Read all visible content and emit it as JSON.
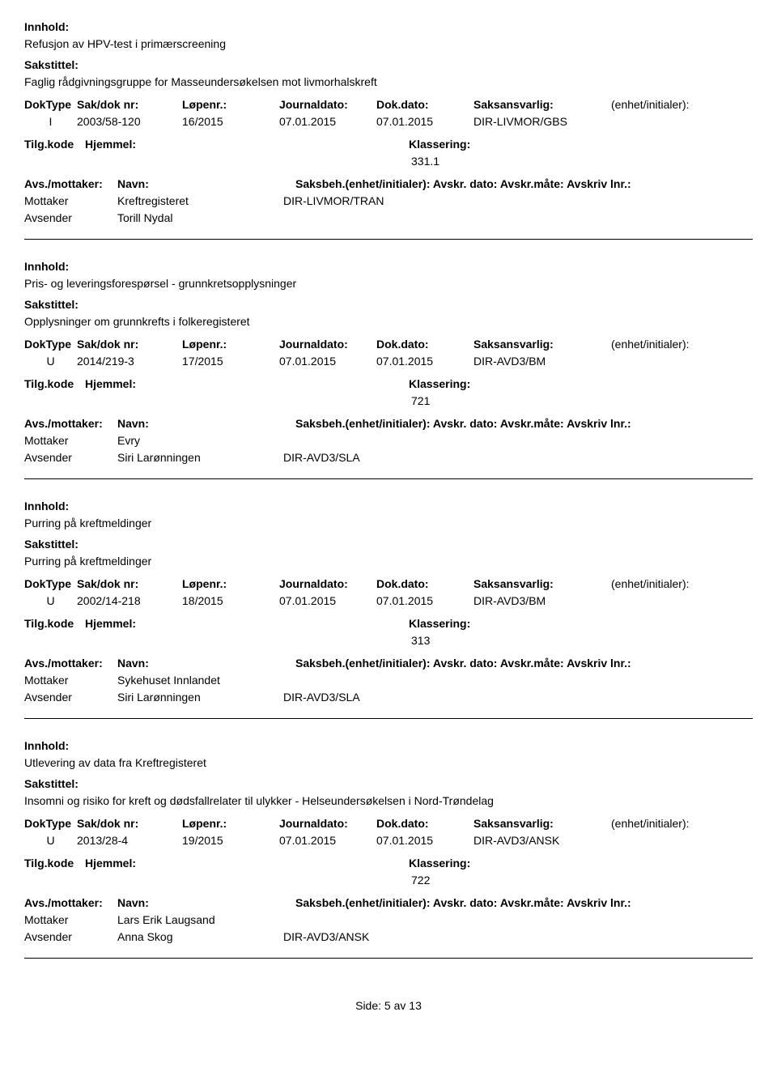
{
  "labels": {
    "innhold": "Innhold:",
    "sakstittel": "Sakstittel:",
    "doktype": "DokType",
    "sakdoknr": "Sak/dok nr:",
    "lopenr": "Løpenr.:",
    "journaldato": "Journaldato:",
    "dokdato": "Dok.dato:",
    "saksansvarlig": "Saksansvarlig:",
    "enhetinit": "(enhet/initialer):",
    "tilgkode": "Tilg.kode",
    "hjemmel": "Hjemmel:",
    "klassering": "Klassering:",
    "avsmottaker": "Avs./mottaker:",
    "navn": "Navn:",
    "saksbehline": "Saksbeh.(enhet/initialer): Avskr. dato: Avskr.måte: Avskriv lnr.:",
    "mottaker": "Mottaker",
    "avsender": "Avsender"
  },
  "entries": [
    {
      "innhold": "Refusjon av HPV-test i primærscreening",
      "sakstittel": "Faglig rådgivningsgruppe for Masseundersøkelsen mot livmorhalskreft",
      "doktype": "I",
      "sakdoknr": "2003/58-120",
      "lopenr": "16/2015",
      "journaldato": "07.01.2015",
      "dokdato": "07.01.2015",
      "saksansvarlig": "DIR-LIVMOR/GBS",
      "klassering": "331.1",
      "parties": [
        {
          "role": "Mottaker",
          "name": "Kreftregisteret",
          "code": "DIR-LIVMOR/TRAN"
        },
        {
          "role": "Avsender",
          "name": "Torill Nydal",
          "code": ""
        }
      ]
    },
    {
      "innhold": "Pris- og leveringsforespørsel - grunnkretsopplysninger",
      "sakstittel": "Opplysninger om grunnkrefts i folkeregisteret",
      "doktype": "U",
      "sakdoknr": "2014/219-3",
      "lopenr": "17/2015",
      "journaldato": "07.01.2015",
      "dokdato": "07.01.2015",
      "saksansvarlig": "DIR-AVD3/BM",
      "klassering": "721",
      "parties": [
        {
          "role": "Mottaker",
          "name": "Evry",
          "code": ""
        },
        {
          "role": "Avsender",
          "name": "Siri Larønningen",
          "code": "DIR-AVD3/SLA"
        }
      ]
    },
    {
      "innhold": "Purring på kreftmeldinger",
      "sakstittel": "Purring på kreftmeldinger",
      "doktype": "U",
      "sakdoknr": "2002/14-218",
      "lopenr": "18/2015",
      "journaldato": "07.01.2015",
      "dokdato": "07.01.2015",
      "saksansvarlig": "DIR-AVD3/BM",
      "klassering": "313",
      "parties": [
        {
          "role": "Mottaker",
          "name": "Sykehuset Innlandet",
          "code": ""
        },
        {
          "role": "Avsender",
          "name": "Siri Larønningen",
          "code": "DIR-AVD3/SLA"
        }
      ]
    },
    {
      "innhold": "Utlevering av data fra Kreftregisteret",
      "sakstittel": "Insomni og risiko for kreft og dødsfallrelater til ulykker - Helseundersøkelsen i Nord-Trøndelag",
      "doktype": "U",
      "sakdoknr": "2013/28-4",
      "lopenr": "19/2015",
      "journaldato": "07.01.2015",
      "dokdato": "07.01.2015",
      "saksansvarlig": "DIR-AVD3/ANSK",
      "klassering": "722",
      "parties": [
        {
          "role": "Mottaker",
          "name": "Lars Erik Laugsand",
          "code": ""
        },
        {
          "role": "Avsender",
          "name": "Anna Skog",
          "code": "DIR-AVD3/ANSK"
        }
      ]
    }
  ],
  "footer": {
    "side": "Side:",
    "page": "5",
    "av": "av",
    "total": "13"
  }
}
